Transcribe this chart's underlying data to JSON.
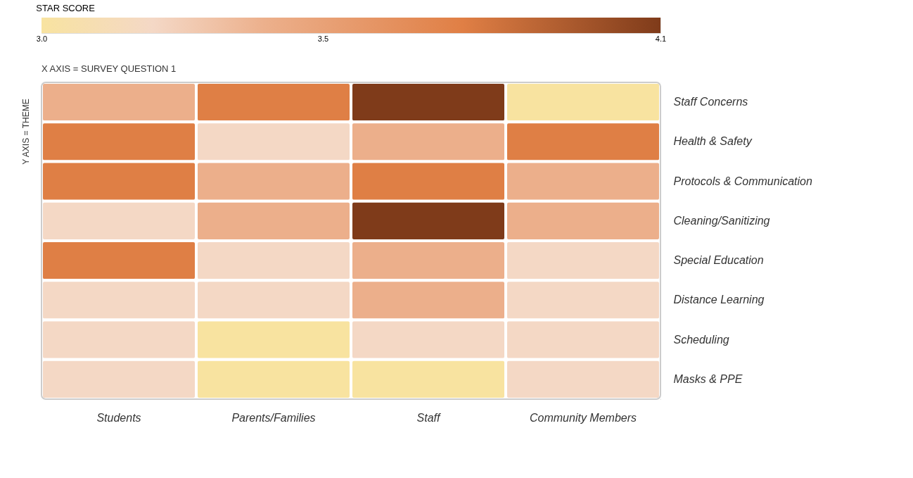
{
  "chart_data": {
    "type": "heatmap",
    "clabel": "STAR SCORE",
    "xlabel": "X AXIS = SURVEY QUESTION 1",
    "ylabel": "Y AXIS = THEME",
    "categories": [
      "Students",
      "Parents/Families",
      "Staff",
      "Community Members"
    ],
    "y_categories": [
      "Staff Concerns",
      "Health & Safety",
      "Protocols & Communication",
      "Cleaning/Sanitizing",
      "Special Education",
      "Distance Learning",
      "Scheduling",
      "Masks & PPE"
    ],
    "cells": [
      [
        3.4,
        3.75,
        4.1,
        3.0
      ],
      [
        3.75,
        3.2,
        3.4,
        3.75
      ],
      [
        3.75,
        3.4,
        3.75,
        3.4
      ],
      [
        3.2,
        3.4,
        4.1,
        3.4
      ],
      [
        3.75,
        3.2,
        3.4,
        3.2
      ],
      [
        3.2,
        3.2,
        3.4,
        3.2
      ],
      [
        3.2,
        3.0,
        3.2,
        3.2
      ],
      [
        3.2,
        3.0,
        3.0,
        3.2
      ]
    ],
    "clim": [
      3.0,
      4.1
    ],
    "cticks": [
      {
        "value": 3,
        "label": "3.0"
      },
      3.5,
      4.1
    ]
  }
}
